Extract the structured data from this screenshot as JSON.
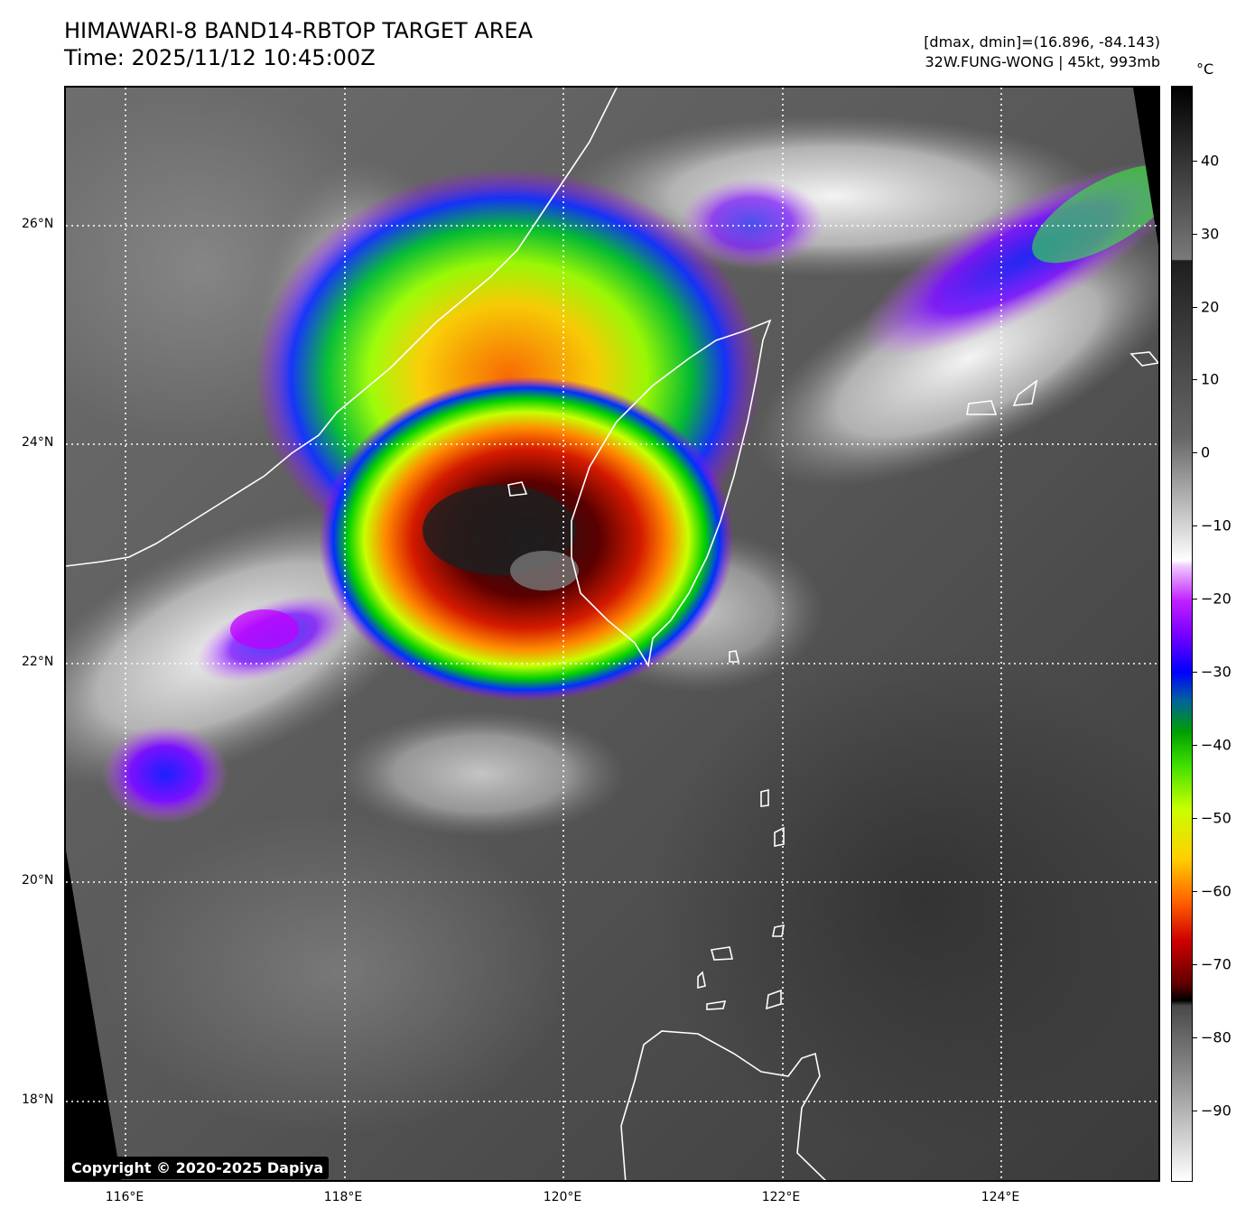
{
  "title_line1": "HIMAWARI-8 BAND14-RBTOP TARGET AREA",
  "title_line2": "Time: 2025/11/12 10:45:00Z",
  "info_line1": "[dmax, dmin]=(16.896, -84.143)",
  "info_line2": "32W.FUNG-WONG | 45kt, 993mb",
  "copyright": "Copyright © 2020-2025 Dapiya",
  "lat_labels": [
    "26°N",
    "24°N",
    "22°N",
    "20°N",
    "18°N"
  ],
  "lon_labels": [
    "116°E",
    "118°E",
    "120°E",
    "122°E",
    "124°E"
  ],
  "colorbar": {
    "unit": "°C",
    "ticks": [
      "40",
      "30",
      "20",
      "10",
      "0",
      "−10",
      "−20",
      "−30",
      "−40",
      "−50",
      "−60",
      "−70",
      "−80",
      "−90"
    ]
  }
}
